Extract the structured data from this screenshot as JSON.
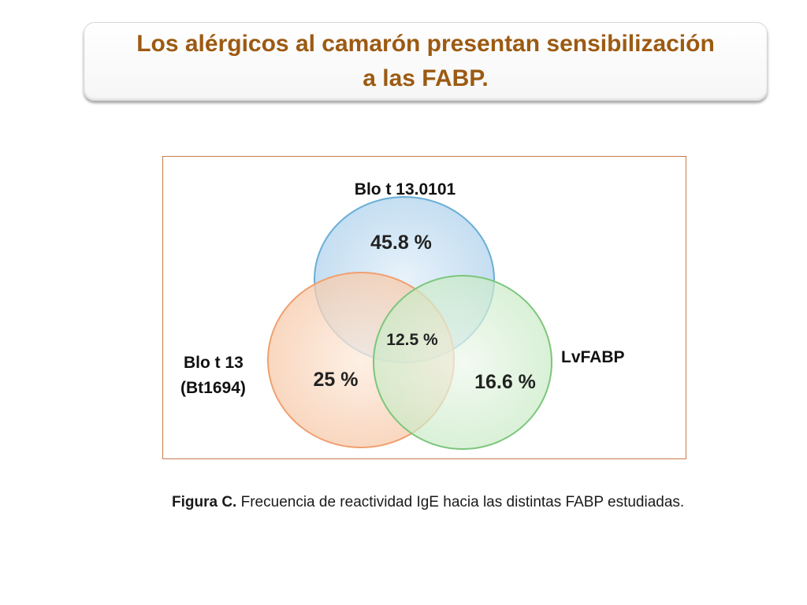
{
  "slide": {
    "title_line1": "Los alérgicos al camarón presentan sensibilización",
    "title_line2": "a las FABP.",
    "title_color": "#9c5a12"
  },
  "diagram": {
    "type": "venn",
    "sets": [
      {
        "name": "Blo t 13.0101",
        "value_label": "45.8 %",
        "color": "#6aaed6"
      },
      {
        "name_line1": "Blo t 13",
        "name_line2": "(Bt1694)",
        "value_label": "25 %",
        "color": "#f0a070"
      },
      {
        "name": "LvFABP",
        "value_label": "16.6 %",
        "color": "#7cc67c"
      }
    ],
    "intersection_label": "12.5 %"
  },
  "caption": {
    "bold": "Figura C.",
    "text": " Frecuencia de reactividad IgE hacia las distintas FABP estudiadas."
  }
}
